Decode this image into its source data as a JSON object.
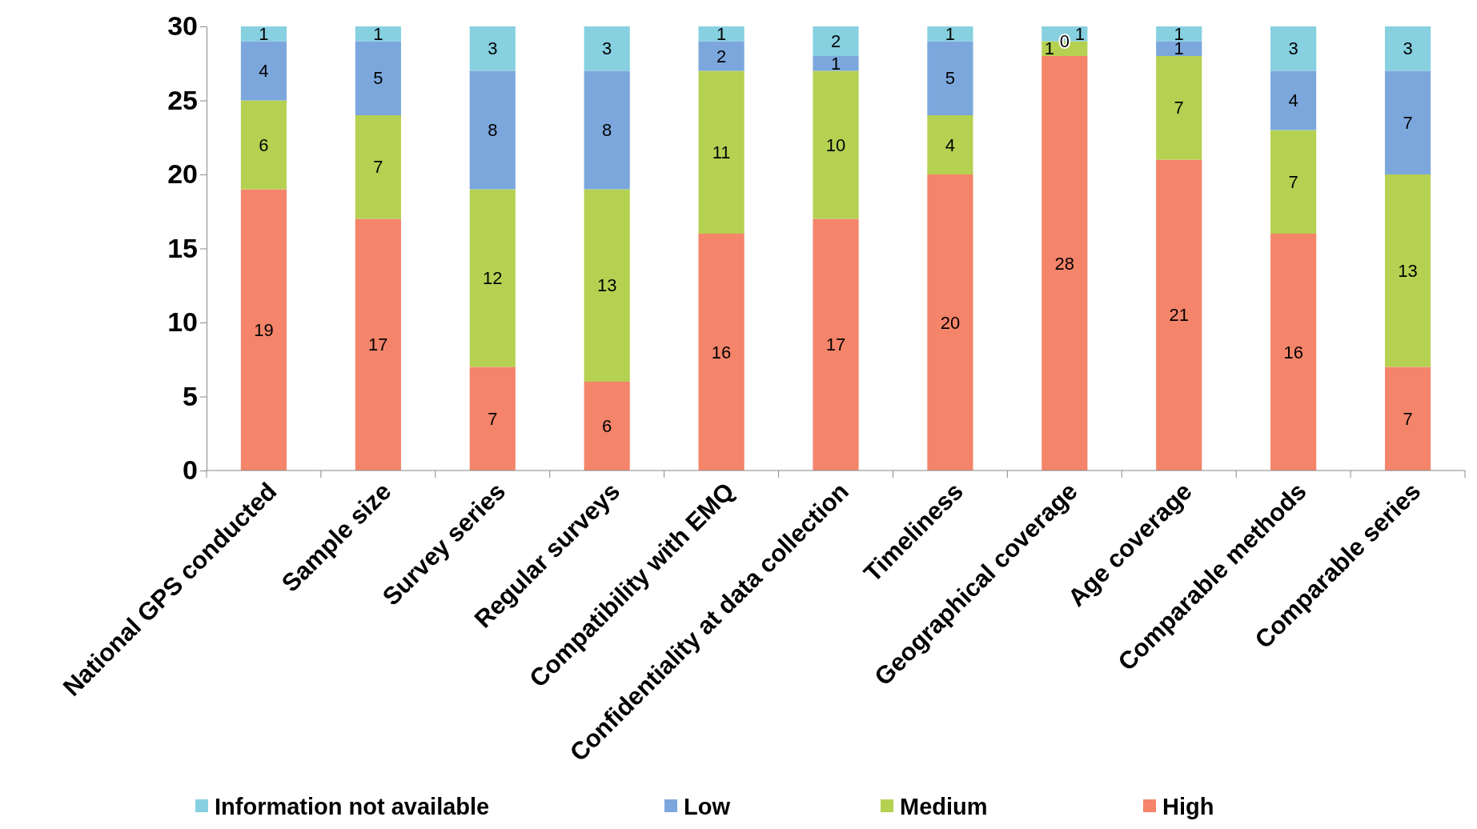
{
  "chart_data": {
    "type": "bar",
    "stacked": true,
    "data_labels": true,
    "legend": "bottom",
    "grid": false,
    "categories": [
      "National GPS conducted",
      "Sample size",
      "Survey series",
      "Regular surveys",
      "Compatibility with EMQ",
      "Confidentiality at data collection",
      "Timeliness",
      "Geographical coverage",
      "Age coverage",
      "Comparable methods",
      "Comparable series"
    ],
    "series": [
      {
        "name": "High",
        "color": "#f4846a",
        "values": [
          19,
          17,
          7,
          6,
          16,
          17,
          20,
          28,
          21,
          16,
          7
        ]
      },
      {
        "name": "Medium",
        "color": "#b5d152",
        "values": [
          6,
          7,
          12,
          13,
          11,
          10,
          4,
          1,
          7,
          7,
          13
        ]
      },
      {
        "name": "Low",
        "color": "#7ba7dc",
        "values": [
          4,
          5,
          8,
          8,
          2,
          1,
          5,
          0,
          1,
          4,
          7
        ]
      },
      {
        "name": "Information not available",
        "color": "#86d0e0",
        "values": [
          1,
          1,
          3,
          3,
          1,
          2,
          1,
          1,
          1,
          3,
          3
        ]
      }
    ],
    "ylim": [
      0,
      30
    ],
    "yticks": [
      0,
      5,
      10,
      15,
      20,
      25,
      30
    ]
  }
}
